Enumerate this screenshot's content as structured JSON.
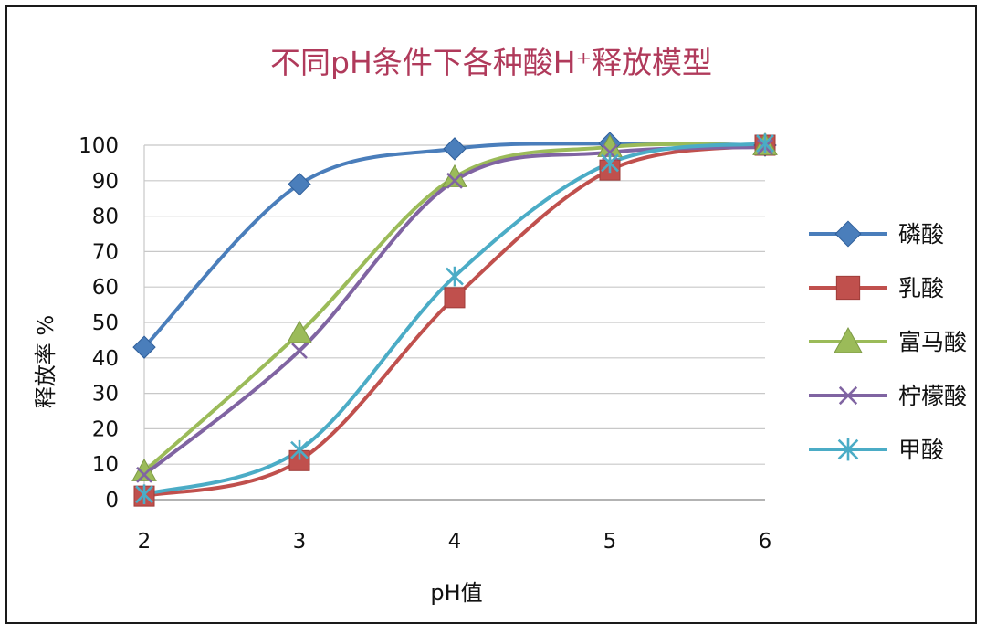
{
  "chart_data": {
    "type": "line",
    "title": "不同pH条件下各种酸H⁺释放模型",
    "xlabel": "pH值",
    "ylabel": "释放率 %",
    "x": [
      2,
      3,
      4,
      5,
      6
    ],
    "ylim": [
      0,
      100
    ],
    "yticks": [
      0,
      10,
      20,
      30,
      40,
      50,
      60,
      70,
      80,
      90,
      100
    ],
    "grid": "horizontal",
    "legend_position": "right",
    "smooth": true,
    "series": [
      {
        "name": "磷酸",
        "color": "#4a7ebb",
        "marker": "diamond",
        "values": [
          43,
          89,
          99,
          100.5,
          100
        ]
      },
      {
        "name": "乳酸",
        "color": "#c0504d",
        "marker": "square",
        "values": [
          1,
          11,
          57,
          93,
          100
        ]
      },
      {
        "name": "富马酸",
        "color": "#9bbb59",
        "marker": "triangle",
        "values": [
          8,
          47,
          91,
          99.5,
          100
        ]
      },
      {
        "name": "柠檬酸",
        "color": "#8064a2",
        "marker": "x",
        "values": [
          7,
          42,
          90,
          98,
          99.5
        ]
      },
      {
        "name": "甲酸",
        "color": "#4bacc6",
        "marker": "star",
        "values": [
          1.5,
          14,
          63,
          95,
          100.5
        ]
      }
    ]
  }
}
